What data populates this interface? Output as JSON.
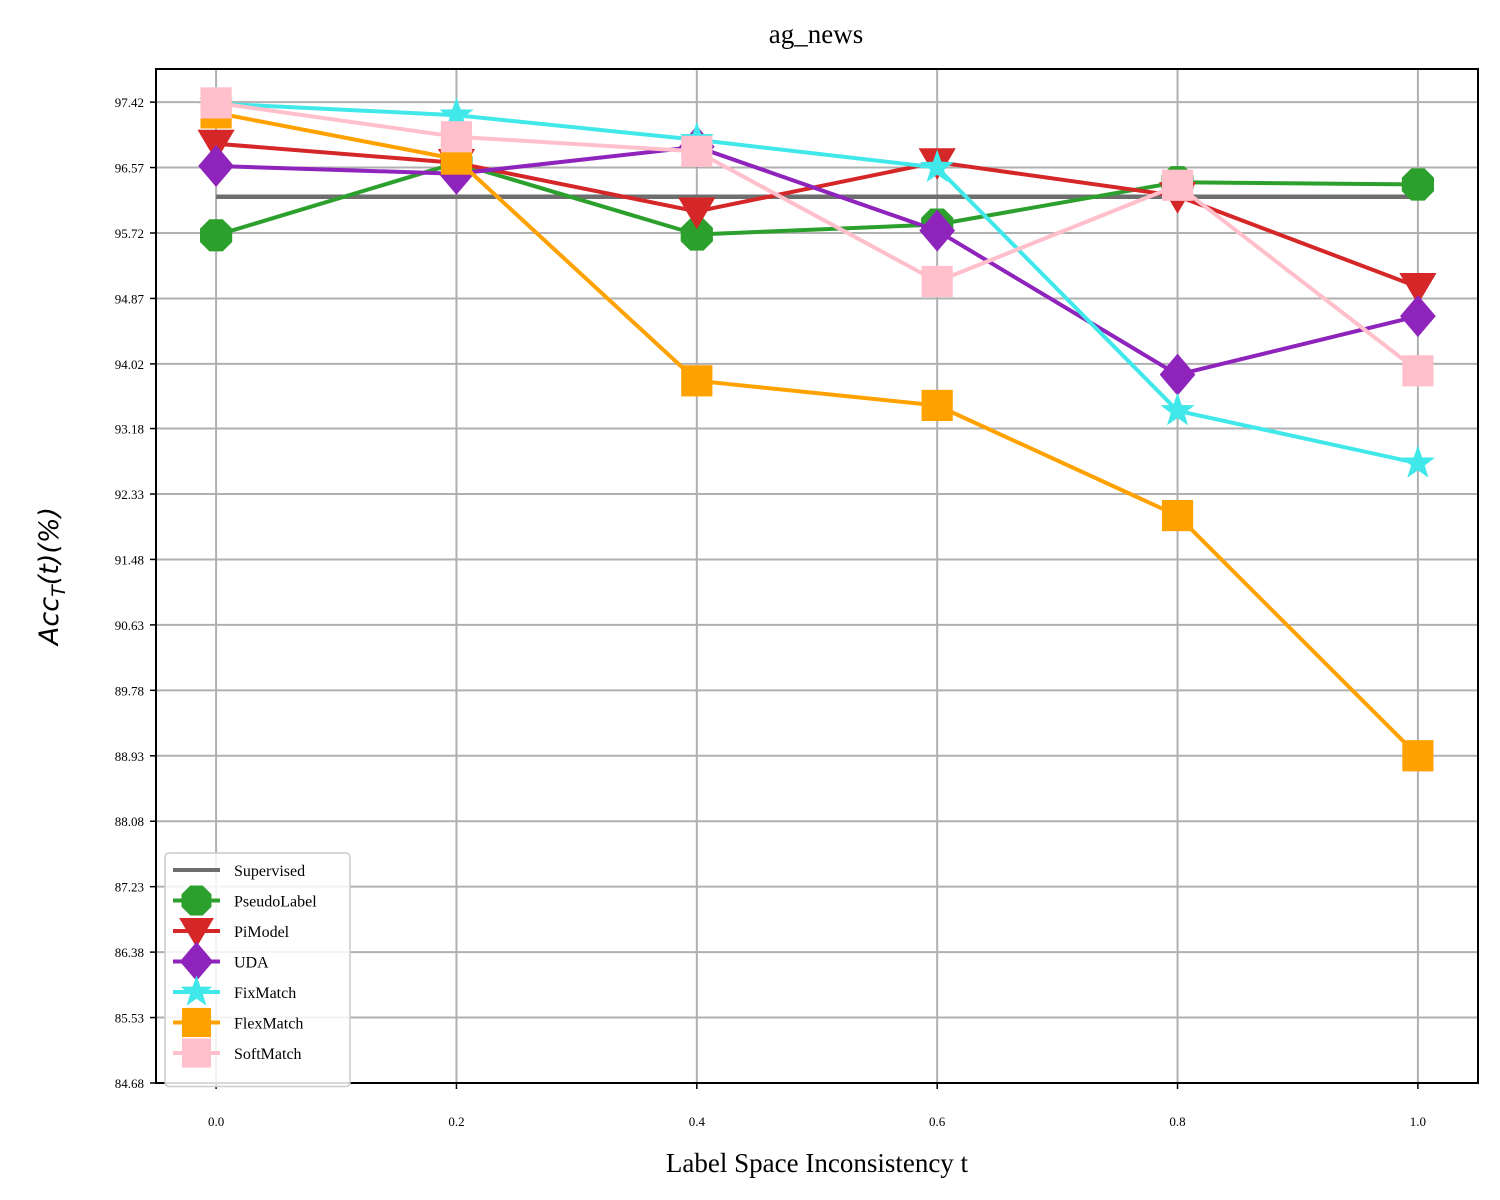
{
  "chart_data": {
    "type": "line",
    "title": "ag_news",
    "xlabel": "Label Space Inconsistency t",
    "ylabel": "Acc_T(t)(%)",
    "xlim": [
      -0.05,
      1.05
    ],
    "ylim": [
      84.68,
      97.85
    ],
    "x": [
      0.0,
      0.2,
      0.4,
      0.6,
      0.8,
      1.0
    ],
    "xticks": [
      "0.0",
      "0.2",
      "0.4",
      "0.6",
      "0.8",
      "1.0"
    ],
    "yticks": [
      "84.68",
      "85.53",
      "86.38",
      "87.23",
      "88.08",
      "88.93",
      "89.78",
      "90.63",
      "91.48",
      "92.33",
      "93.18",
      "94.02",
      "94.87",
      "95.72",
      "96.57",
      "97.42"
    ],
    "grid": true,
    "legend_position": "lower-left",
    "series": [
      {
        "name": "Supervised",
        "color": "#6e6e6e",
        "marker": "none",
        "values": [
          96.19,
          96.19,
          96.19,
          96.19,
          96.19,
          96.19
        ]
      },
      {
        "name": "PseudoLabel",
        "color": "#2ca02c",
        "marker": "octagon",
        "values": [
          95.69,
          96.63,
          95.7,
          95.83,
          96.38,
          96.35
        ]
      },
      {
        "name": "PiModel",
        "color": "#d62728",
        "marker": "triangle-down",
        "values": [
          96.88,
          96.63,
          96.0,
          96.64,
          96.2,
          95.02
        ]
      },
      {
        "name": "UDA",
        "color": "#8e24bb",
        "marker": "diamond",
        "values": [
          96.59,
          96.49,
          96.84,
          95.75,
          93.88,
          94.64
        ]
      },
      {
        "name": "FixMatch",
        "color": "#40e8ea",
        "marker": "star",
        "values": [
          97.4,
          97.25,
          96.93,
          96.57,
          93.41,
          92.73
        ]
      },
      {
        "name": "FlexMatch",
        "color": "#ffa200",
        "marker": "square",
        "values": [
          97.28,
          96.68,
          93.8,
          93.48,
          92.05,
          88.93
        ]
      },
      {
        "name": "SoftMatch",
        "color": "#ffc0cb",
        "marker": "square",
        "values": [
          97.41,
          96.97,
          96.78,
          95.09,
          96.34,
          93.93
        ]
      }
    ]
  }
}
